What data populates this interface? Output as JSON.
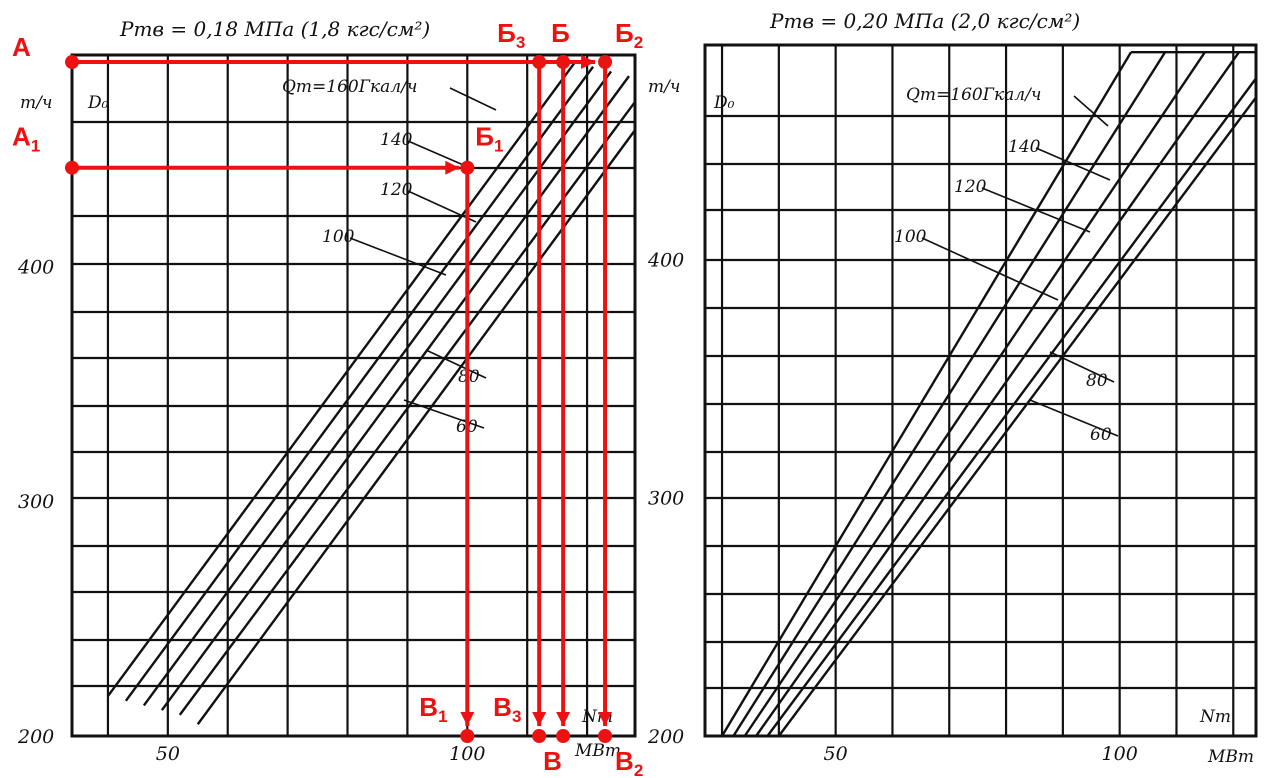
{
  "chart_data": [
    {
      "type": "line",
      "title": "Pтв = 0,18 МПа (1,8 кгс/см²)",
      "ylabel_unit": "т/ч",
      "ylabel_symbol": "D₀",
      "xlabel_symbol": "Nт",
      "xlabel_unit": "МВт",
      "xlim": [
        34,
        128
      ],
      "ylim": [
        200,
        490
      ],
      "x_ticks": [
        50,
        100
      ],
      "y_ticks": [
        200,
        300,
        400
      ],
      "curve_label_prefix": "Qт=",
      "curve_label_unit": "Гкал/ч",
      "series": [
        {
          "name": "160",
          "x": [
            40,
            118
          ],
          "y": [
            217,
            487
          ]
        },
        {
          "name": "140",
          "x": [
            43,
            121
          ],
          "y": [
            215,
            485
          ]
        },
        {
          "name": "120",
          "x": [
            46,
            124
          ],
          "y": [
            213,
            483
          ]
        },
        {
          "name": "100",
          "x": [
            49,
            127
          ],
          "y": [
            211,
            481
          ]
        },
        {
          "name": "80",
          "x": [
            52,
            128
          ],
          "y": [
            209,
            470
          ]
        },
        {
          "name": "60",
          "x": [
            55,
            128
          ],
          "y": [
            205,
            458
          ]
        }
      ],
      "annotations": {
        "points": [
          {
            "label": "А",
            "sub": "",
            "x": 34,
            "y": 487
          },
          {
            "label": "А",
            "sub": "1",
            "x": 34,
            "y": 442
          },
          {
            "label": "Б",
            "sub": "3",
            "x": 112,
            "y": 487
          },
          {
            "label": "Б",
            "sub": "",
            "x": 116,
            "y": 487
          },
          {
            "label": "Б",
            "sub": "2",
            "x": 123,
            "y": 487
          },
          {
            "label": "Б",
            "sub": "1",
            "x": 100,
            "y": 442
          },
          {
            "label": "В",
            "sub": "1",
            "x": 100,
            "y": 200
          },
          {
            "label": "В",
            "sub": "3",
            "x": 112,
            "y": 200
          },
          {
            "label": "В",
            "sub": "",
            "x": 116,
            "y": 200
          },
          {
            "label": "В",
            "sub": "2",
            "x": 123,
            "y": 200
          }
        ]
      }
    },
    {
      "type": "line",
      "title": "Pтв = 0,20 МПа (2,0 кгс/см²)",
      "ylabel_unit": "т/ч",
      "ylabel_symbol": "D₀",
      "xlabel_symbol": "Nт",
      "xlabel_unit": "МВт",
      "xlim": [
        27,
        124
      ],
      "ylim": [
        200,
        490
      ],
      "x_ticks": [
        50,
        100
      ],
      "y_ticks": [
        200,
        300,
        400
      ],
      "curve_label_prefix": "Qт=",
      "curve_label_unit": "Гкал/ч",
      "series": [
        {
          "name": "160",
          "x": [
            30,
            102
          ],
          "y": [
            200,
            487
          ]
        },
        {
          "name": "140",
          "x": [
            32,
            108
          ],
          "y": [
            200,
            487
          ]
        },
        {
          "name": "120",
          "x": [
            34,
            115
          ],
          "y": [
            200,
            487
          ]
        },
        {
          "name": "100",
          "x": [
            36,
            121
          ],
          "y": [
            200,
            487
          ]
        },
        {
          "name": "80",
          "x": [
            38,
            124
          ],
          "y": [
            200,
            476
          ]
        },
        {
          "name": "60",
          "x": [
            40,
            124
          ],
          "y": [
            200,
            468
          ]
        }
      ]
    }
  ],
  "colors": {
    "axes": "#111111",
    "annotation": "#ee1111"
  }
}
